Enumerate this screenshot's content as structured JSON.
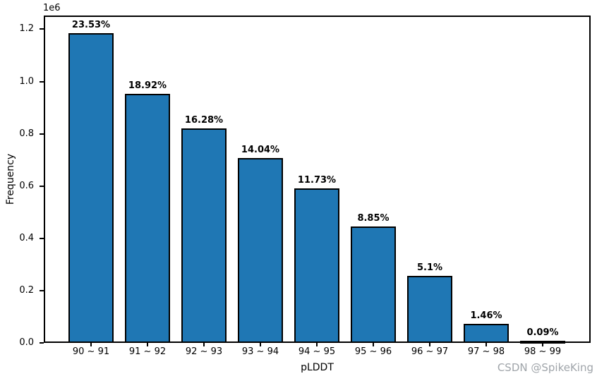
{
  "watermark": "CSDN @SpikeKing",
  "chart_data": {
    "type": "bar",
    "title": "",
    "xlabel": "pLDDT",
    "ylabel": "Frequency",
    "y_offset_label": "1e6",
    "categories": [
      "90 ~ 91",
      "91 ~ 92",
      "92 ~ 93",
      "93 ~ 94",
      "94 ~ 95",
      "95 ~ 96",
      "96 ~ 97",
      "97 ~ 98",
      "98 ~ 99"
    ],
    "values": [
      1185000,
      953000,
      820000,
      707000,
      591000,
      446000,
      257000,
      73500,
      4500
    ],
    "bar_labels": [
      "23.53%",
      "18.92%",
      "16.28%",
      "14.04%",
      "11.73%",
      "8.85%",
      "5.1%",
      "1.46%",
      "0.09%"
    ],
    "yticks": [
      0.0,
      0.2,
      0.4,
      0.6,
      0.8,
      1.0,
      1.2
    ],
    "ytick_labels": [
      "0.0",
      "0.2",
      "0.4",
      "0.6",
      "0.8",
      "1.0",
      "1.2"
    ],
    "ylim": [
      0,
      1252400
    ],
    "y_scale_factor": 1000000,
    "bar_color": "#1f77b4",
    "bar_edge_color": "#000000",
    "grid": false,
    "legend": null
  }
}
